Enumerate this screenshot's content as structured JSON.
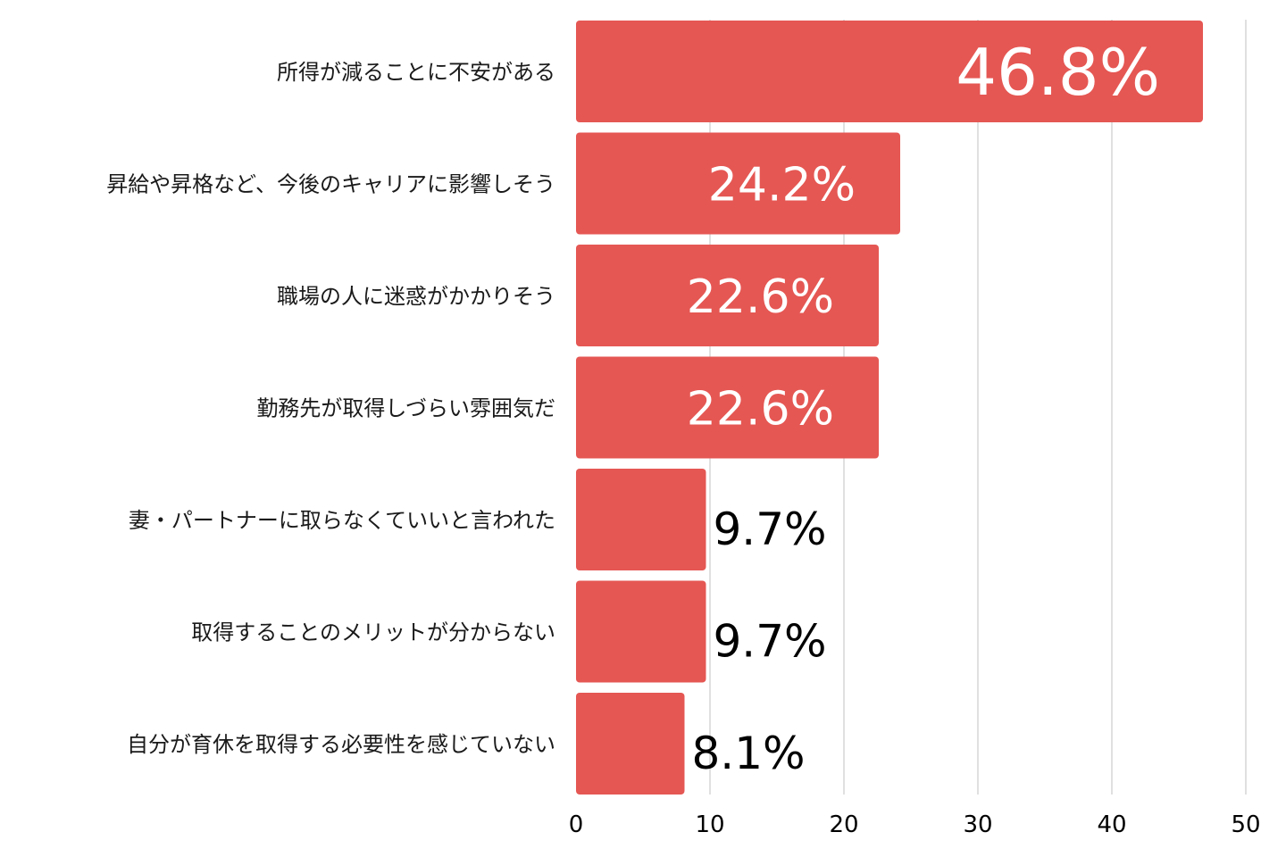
{
  "chart_data": {
    "type": "bar",
    "orientation": "horizontal",
    "categories": [
      "所得が減ることに不安がある",
      "昇給や昇格など、今後のキャリアに影響しそう",
      "職場の人に迷惑がかかりそう",
      "勤務先が取得しづらい雰囲気だ",
      "妻・パートナーに取らなくていいと言われた",
      "取得することのメリットが分からない",
      "自分が育休を取得する必要性を感じていない"
    ],
    "values": [
      46.8,
      24.2,
      22.6,
      22.6,
      9.7,
      9.7,
      8.1
    ],
    "value_labels": [
      "46.8%",
      "24.2%",
      "22.6%",
      "22.6%",
      "9.7%",
      "9.7%",
      "8.1%"
    ],
    "xlim": [
      0,
      50
    ],
    "x_ticks": [
      "0",
      "10",
      "20",
      "30",
      "40",
      "50"
    ],
    "grid": "vertical",
    "title": "",
    "xlabel": "",
    "ylabel": "",
    "colors": {
      "bar": "#e55753",
      "grid": "#cccccc",
      "label_inside": "#ffffff",
      "label_outside": "#000000"
    }
  }
}
